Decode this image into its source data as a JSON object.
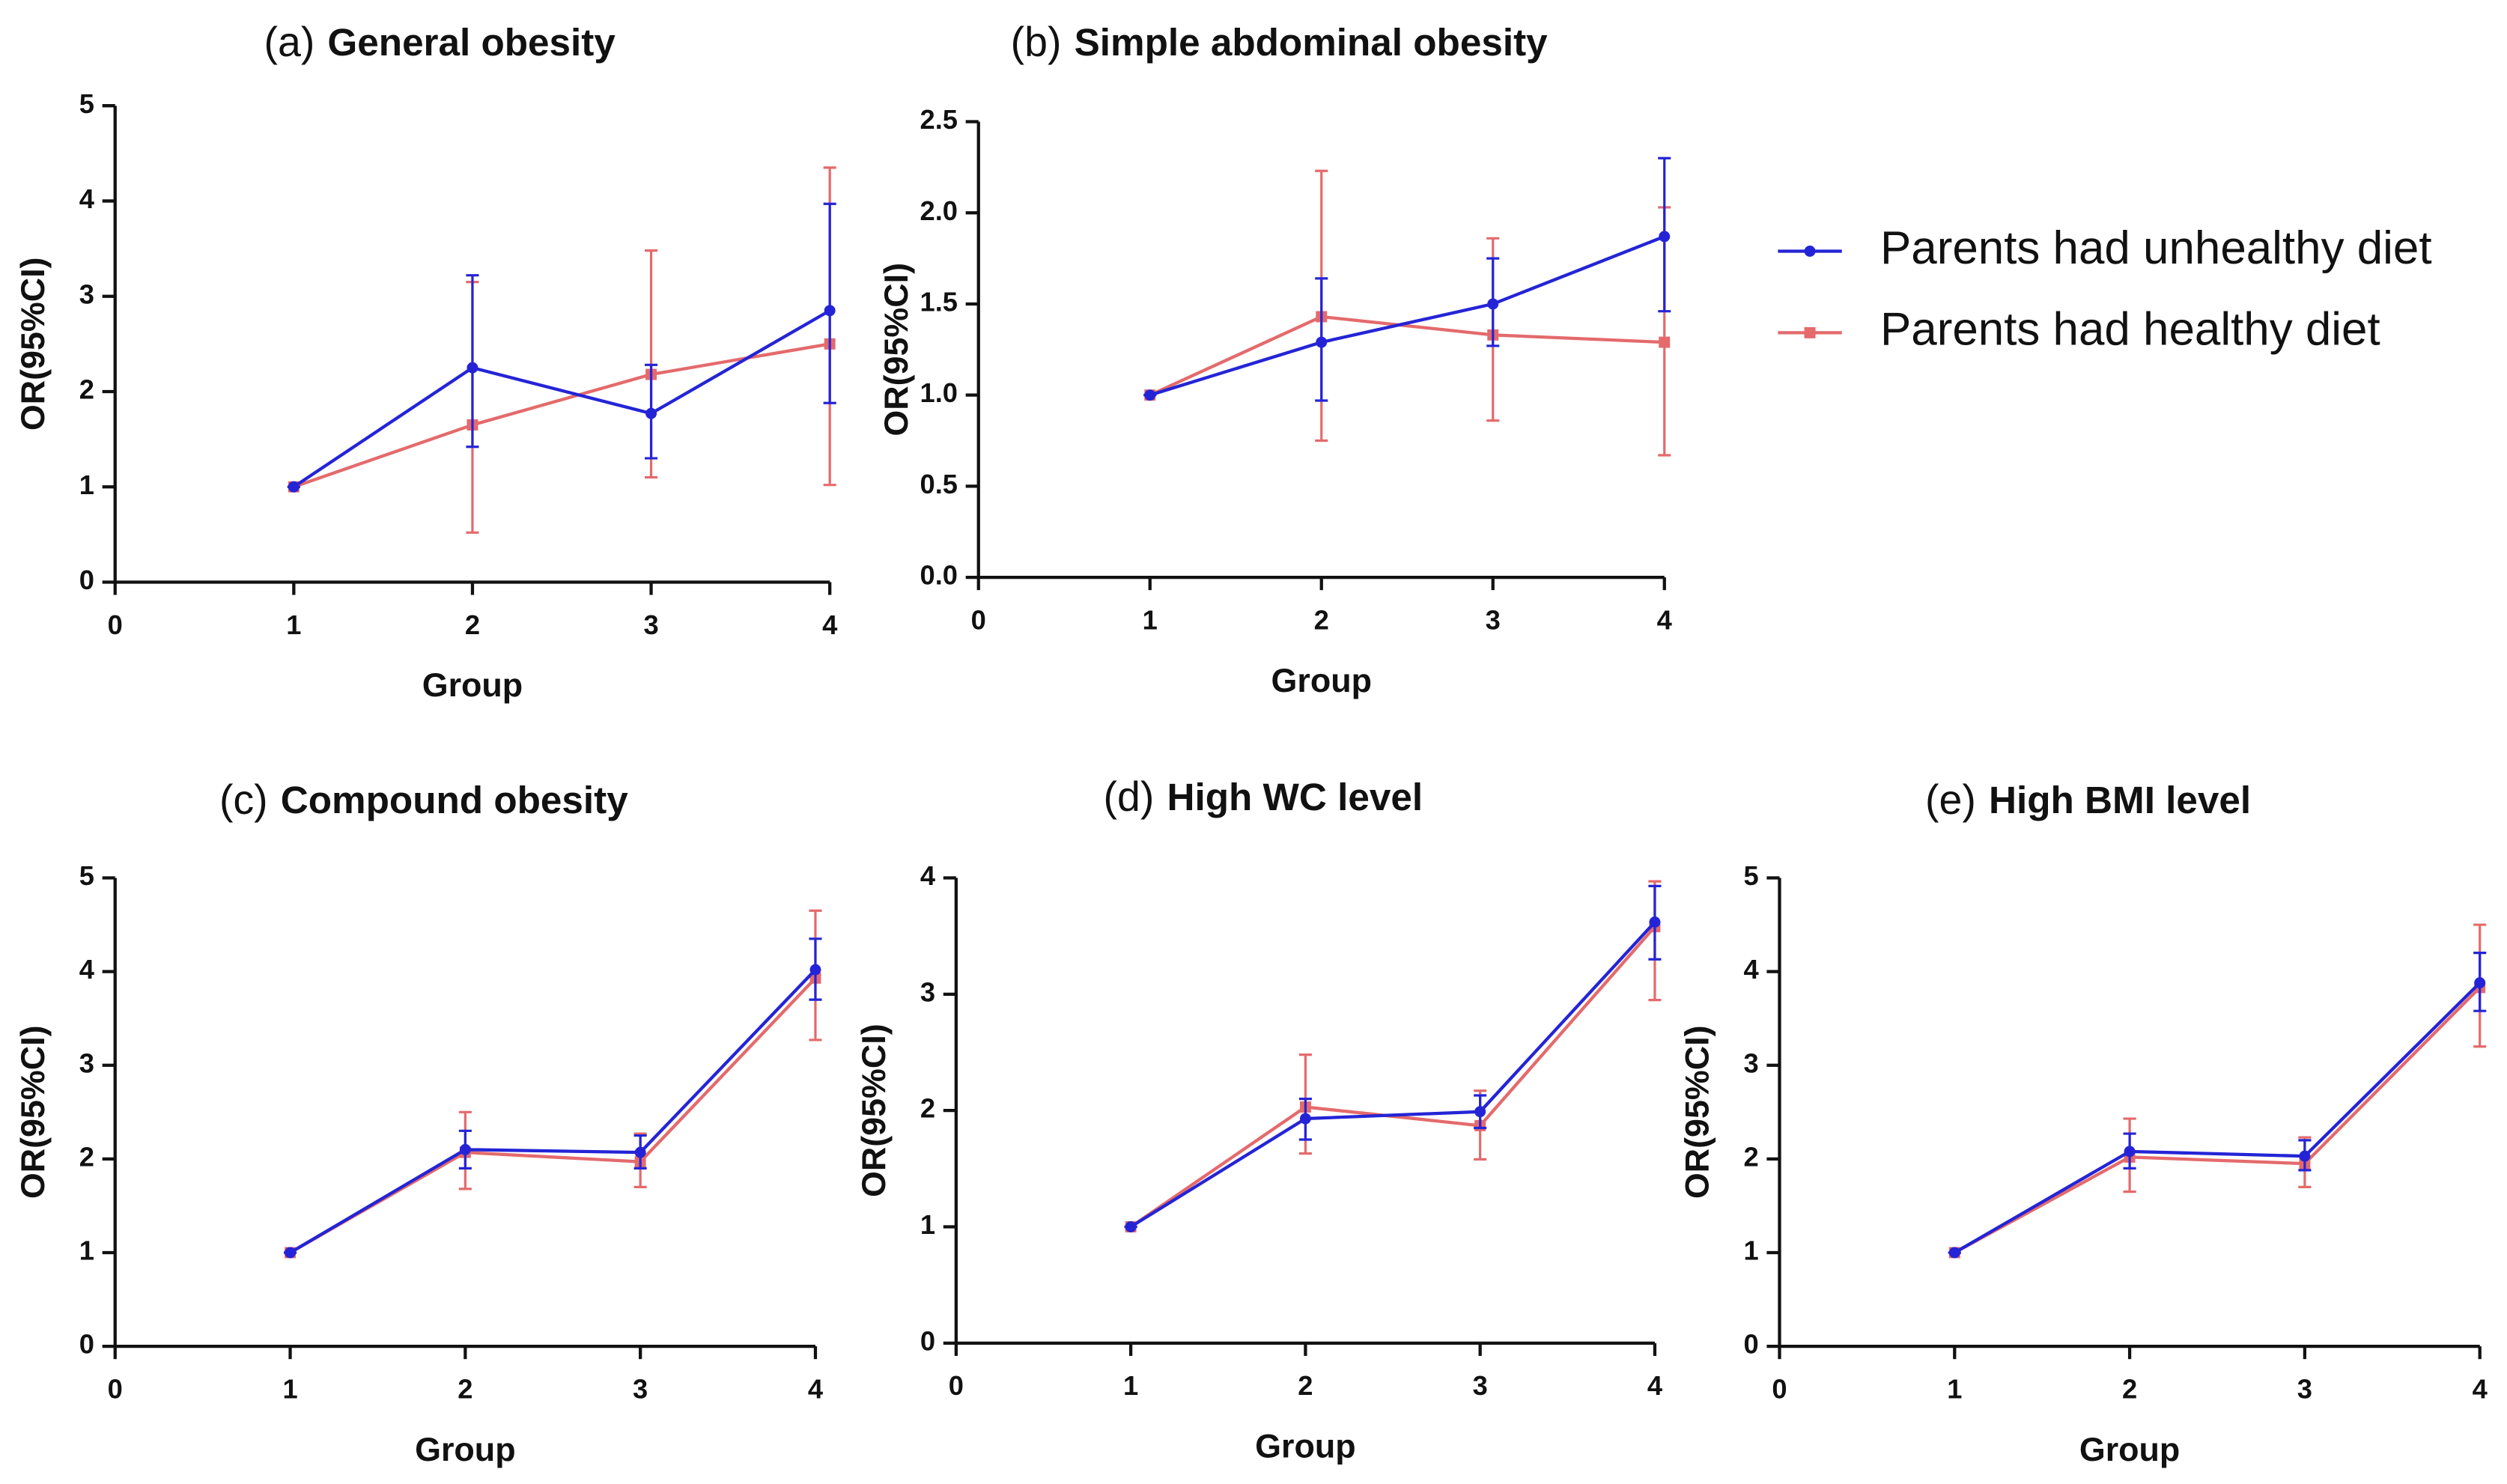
{
  "chart_data": [
    {
      "type": "line",
      "label": "(a)",
      "title": "General obesity",
      "xlabel": "Group",
      "ylabel": "OR(95%CI)",
      "x": [
        1,
        2,
        3,
        4
      ],
      "xlim": [
        0,
        4
      ],
      "xticks": [
        0,
        1,
        2,
        3,
        4
      ],
      "ylim": [
        0,
        5
      ],
      "yticks": [
        0,
        1,
        2,
        3,
        4,
        5
      ],
      "series": [
        {
          "name": "Parents had unhealthy diet",
          "color": "#2424d6",
          "values": [
            1,
            2.25,
            1.77,
            2.85
          ],
          "ci_low": [
            1,
            1.42,
            1.3,
            1.88
          ],
          "ci_high": [
            1,
            3.22,
            2.28,
            3.97
          ]
        },
        {
          "name": "Parents had healthy diet",
          "color": "#e46a6c",
          "values": [
            1,
            1.65,
            2.18,
            2.5
          ],
          "ci_low": [
            1,
            0.52,
            1.1,
            1.02
          ],
          "ci_high": [
            1,
            3.15,
            3.48,
            4.35
          ]
        }
      ]
    },
    {
      "type": "line",
      "label": "(b)",
      "title": "Simple abdominal obesity",
      "xlabel": "Group",
      "ylabel": "OR(95%CI)",
      "x": [
        1,
        2,
        3,
        4
      ],
      "xlim": [
        0,
        4
      ],
      "xticks": [
        0,
        1,
        2,
        3,
        4
      ],
      "ylim": [
        0,
        2.5
      ],
      "yticks": [
        {
          "value": 0,
          "label": "0.0"
        },
        {
          "value": 0.5,
          "label": "0.5"
        },
        {
          "value": 1,
          "label": "1.0"
        },
        {
          "value": 1.5,
          "label": "1.5"
        },
        {
          "value": 2,
          "label": "2.0"
        },
        {
          "value": 2.5,
          "label": "2.5"
        }
      ],
      "series": [
        {
          "color": "#2424d6",
          "values": [
            1,
            1.29,
            1.5,
            1.87
          ],
          "ci_low": [
            1,
            0.97,
            1.27,
            1.46
          ],
          "ci_high": [
            1,
            1.64,
            1.75,
            2.3
          ]
        },
        {
          "color": "#e46a6c",
          "values": [
            1,
            1.43,
            1.33,
            1.29
          ],
          "ci_low": [
            1,
            0.75,
            0.86,
            0.67
          ],
          "ci_high": [
            1,
            2.23,
            1.86,
            2.03
          ]
        }
      ]
    },
    {
      "type": "line",
      "label": "(c)",
      "title": "Compound obesity",
      "xlabel": "Group",
      "ylabel": "OR(95%CI)",
      "x": [
        1,
        2,
        3,
        4
      ],
      "xlim": [
        0,
        4
      ],
      "xticks": [
        0,
        1,
        2,
        3,
        4
      ],
      "ylim": [
        0,
        5
      ],
      "yticks": [
        0,
        1,
        2,
        3,
        4,
        5
      ],
      "series": [
        {
          "color": "#2424d6",
          "values": [
            1,
            2.1,
            2.07,
            4.02
          ],
          "ci_low": [
            1,
            1.9,
            1.9,
            3.7
          ],
          "ci_high": [
            1,
            2.3,
            2.25,
            4.35
          ]
        },
        {
          "color": "#e46a6c",
          "values": [
            1,
            2.07,
            1.97,
            3.93
          ],
          "ci_low": [
            1,
            1.68,
            1.7,
            3.27
          ],
          "ci_high": [
            1,
            2.5,
            2.27,
            4.65
          ]
        }
      ]
    },
    {
      "type": "line",
      "label": "(d)",
      "title": "High WC level",
      "xlabel": "Group",
      "ylabel": "OR(95%CI)",
      "x": [
        1,
        2,
        3,
        4
      ],
      "xlim": [
        0,
        4
      ],
      "xticks": [
        0,
        1,
        2,
        3,
        4
      ],
      "ylim": [
        0,
        4
      ],
      "yticks": [
        0,
        1,
        2,
        3,
        4
      ],
      "series": [
        {
          "color": "#2424d6",
          "values": [
            1,
            1.93,
            1.99,
            3.62
          ],
          "ci_low": [
            1,
            1.75,
            1.85,
            3.3
          ],
          "ci_high": [
            1,
            2.1,
            2.13,
            3.93
          ]
        },
        {
          "color": "#e46a6c",
          "values": [
            1,
            2.03,
            1.87,
            3.58
          ],
          "ci_low": [
            1,
            1.63,
            1.58,
            2.95
          ],
          "ci_high": [
            1,
            2.48,
            2.17,
            3.97
          ]
        }
      ]
    },
    {
      "type": "line",
      "label": "(e)",
      "title": "High BMI level",
      "xlabel": "Group",
      "ylabel": "OR(95%CI)",
      "x": [
        1,
        2,
        3,
        4
      ],
      "xlim": [
        0,
        4
      ],
      "xticks": [
        0,
        1,
        2,
        3,
        4
      ],
      "ylim": [
        0,
        5
      ],
      "yticks": [
        0,
        1,
        2,
        3,
        4,
        5
      ],
      "series": [
        {
          "color": "#2424d6",
          "values": [
            1,
            2.08,
            2.03,
            3.88
          ],
          "ci_low": [
            1,
            1.9,
            1.88,
            3.58
          ],
          "ci_high": [
            1,
            2.27,
            2.2,
            4.2
          ]
        },
        {
          "color": "#e46a6c",
          "values": [
            1,
            2.02,
            1.95,
            3.83
          ],
          "ci_low": [
            1,
            1.65,
            1.7,
            3.2
          ],
          "ci_high": [
            1,
            2.43,
            2.23,
            4.5
          ]
        }
      ]
    }
  ]
}
